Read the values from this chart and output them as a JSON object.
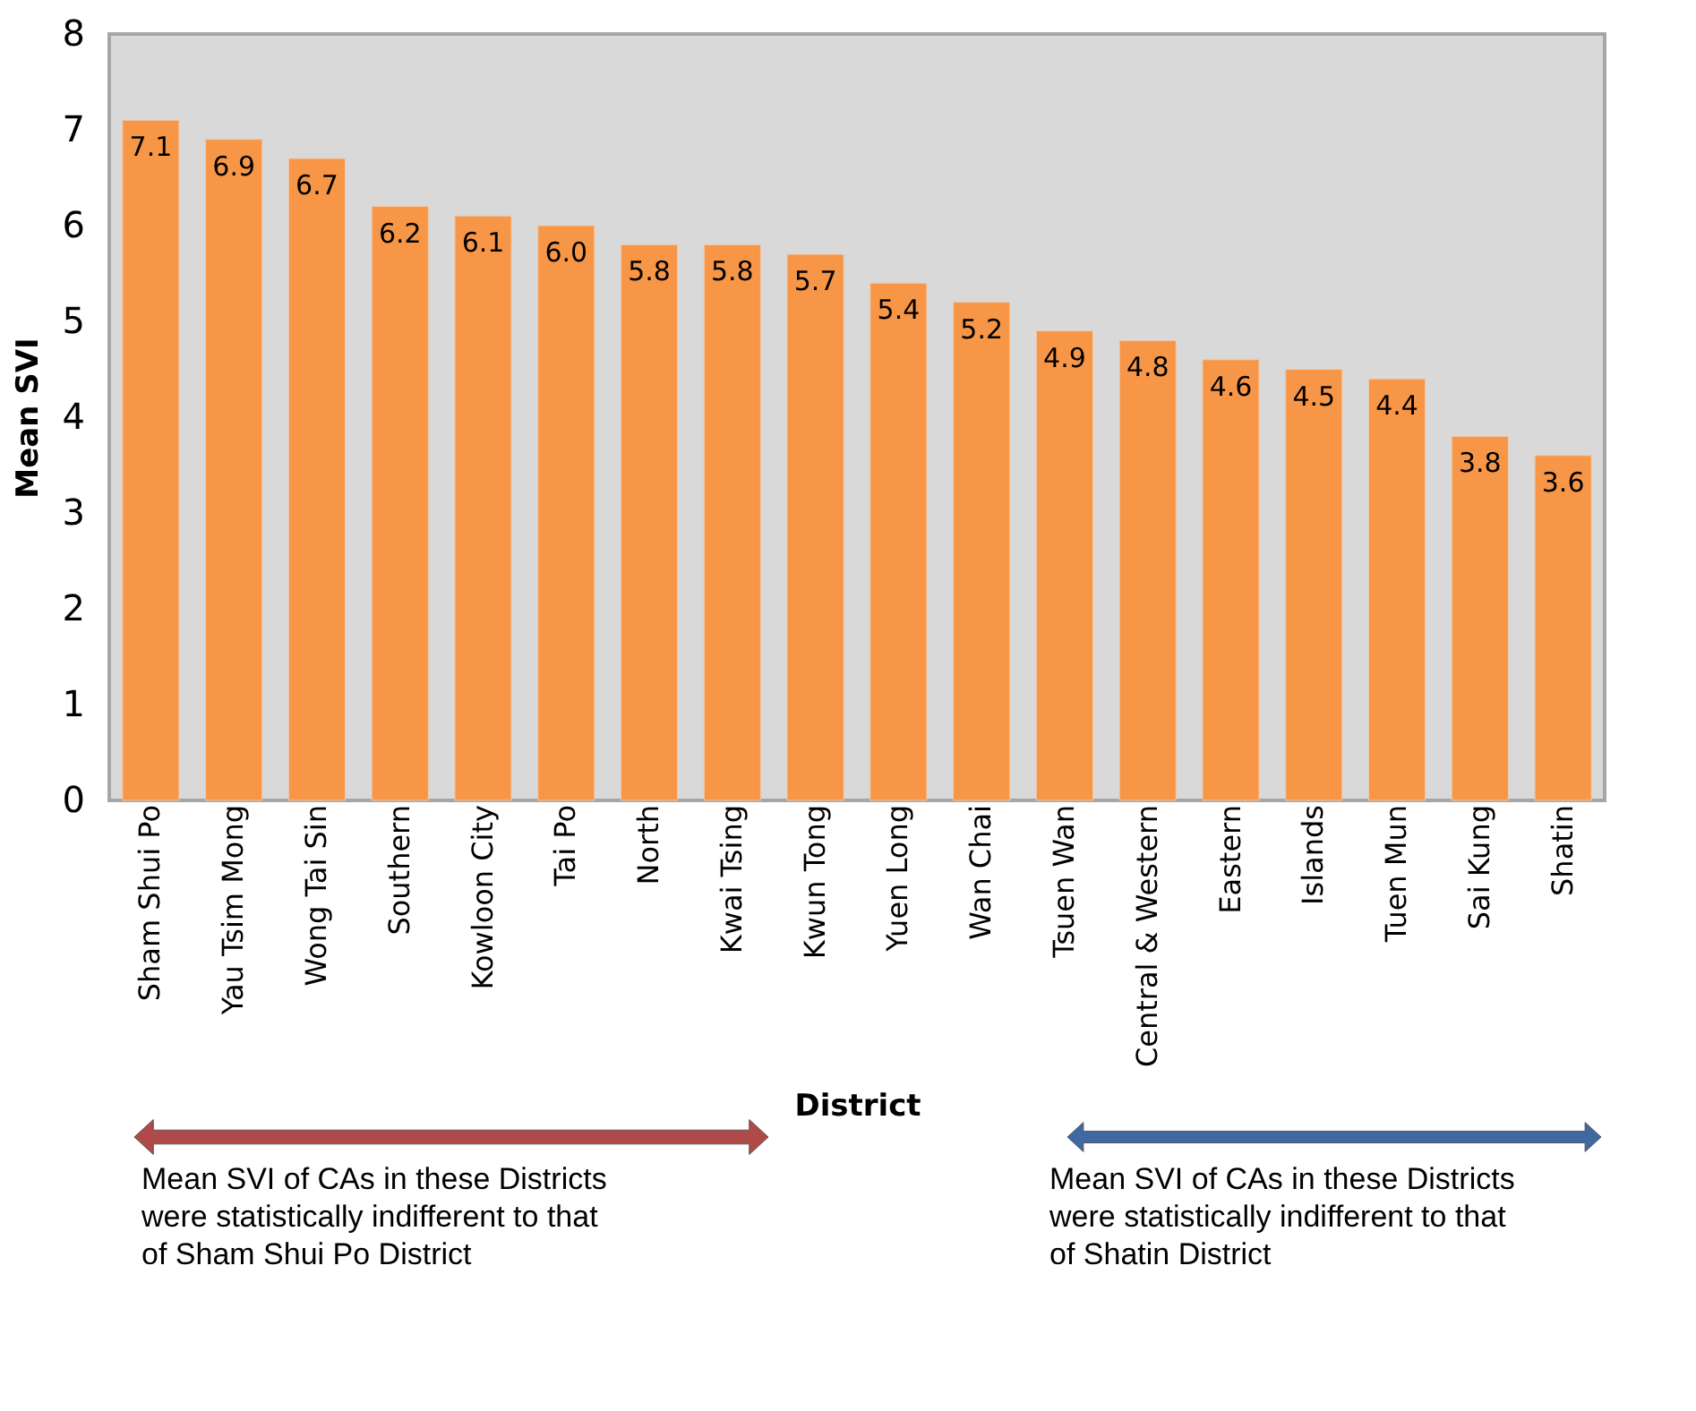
{
  "chart_data": {
    "type": "bar",
    "categories": [
      "Sham Shui Po",
      "Yau Tsim Mong",
      "Wong Tai Sin",
      "Southern",
      "Kowloon City",
      "Tai Po",
      "North",
      "Kwai Tsing",
      "Kwun Tong",
      "Yuen Long",
      "Wan Chai",
      "Tsuen Wan",
      "Central & Western",
      "Eastern",
      "Islands",
      "Tuen Mun",
      "Sai Kung",
      "Shatin"
    ],
    "values": [
      7.1,
      6.9,
      6.7,
      6.2,
      6.1,
      6.0,
      5.8,
      5.8,
      5.7,
      5.4,
      5.2,
      4.9,
      4.8,
      4.6,
      4.5,
      4.4,
      3.8,
      3.6
    ],
    "color": "#f79646",
    "xlabel": "District",
    "ylabel": "Mean SVI",
    "ylim": [
      0,
      8
    ],
    "yticks": [
      0,
      1,
      2,
      3,
      4,
      5,
      6,
      7,
      8
    ],
    "grid": false,
    "value_labels": [
      "7.1",
      "6.9",
      "6.7",
      "6.2",
      "6.1",
      "6.0",
      "5.8",
      "5.8",
      "5.7",
      "5.4",
      "5.2",
      "4.9",
      "4.8",
      "4.6",
      "4.5",
      "4.4",
      "3.8",
      "3.6"
    ],
    "annotations": [
      "Mean SVI of CAs in these Districts\nwere statistically indifferent to that\nof Sham Shui Po District",
      "Mean SVI of CAs in these Districts\nwere statistically indifferent to that\nof Shatin District"
    ]
  }
}
